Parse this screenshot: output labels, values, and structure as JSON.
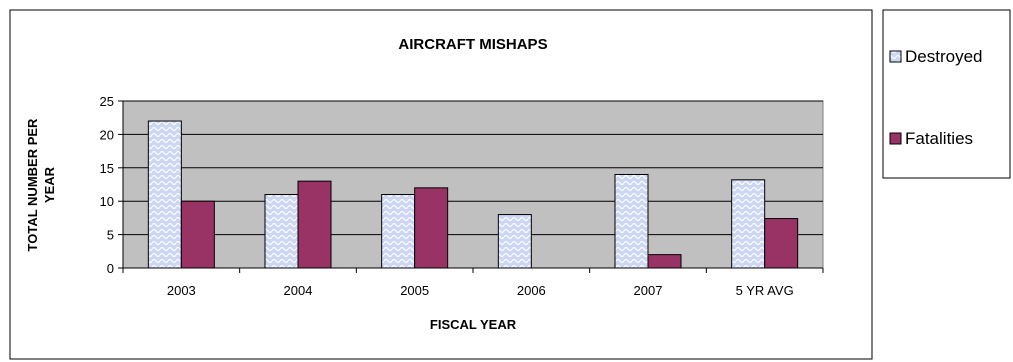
{
  "chart_data": {
    "type": "bar",
    "title": "AIRCRAFT MISHAPS",
    "xlabel": "FISCAL YEAR",
    "ylabel_lines": [
      "TOTAL NUMBER PER",
      "YEAR"
    ],
    "categories": [
      "2003",
      "2004",
      "2005",
      "2006",
      "2007",
      "5 YR AVG"
    ],
    "series": [
      {
        "name": "Destroyed",
        "values": [
          22,
          11,
          11,
          8,
          14,
          13.2
        ],
        "fill": "#ccd6f5",
        "pattern": "wave"
      },
      {
        "name": "Fatalities",
        "values": [
          10,
          13,
          12,
          0,
          2,
          7.4
        ],
        "fill": "#993366"
      }
    ],
    "ylim": [
      0,
      25
    ],
    "yticks": [
      0,
      5,
      10,
      15,
      20,
      25
    ],
    "grid": true,
    "plot_background": "#c0c0c0",
    "legend_position": "right"
  }
}
